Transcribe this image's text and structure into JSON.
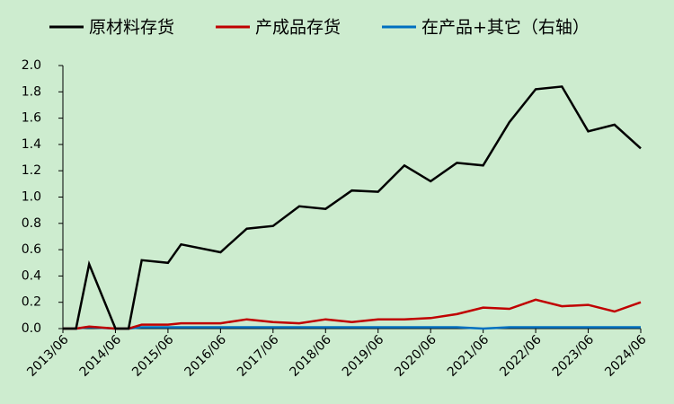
{
  "chart_data": {
    "type": "line",
    "x": [
      "2013/06",
      "2013/09",
      "2013/12",
      "2014/06",
      "2014/09",
      "2014/12",
      "2015/06",
      "2015/09",
      "2016/06",
      "2016/12",
      "2017/06",
      "2017/12",
      "2018/06",
      "2018/12",
      "2019/06",
      "2019/12",
      "2020/06",
      "2020/12",
      "2021/06",
      "2021/12",
      "2022/06",
      "2022/12",
      "2023/06",
      "2023/12",
      "2024/06"
    ],
    "series": [
      {
        "name": "原材料存货",
        "color": "#000000",
        "values": [
          0,
          0,
          0.49,
          0,
          0,
          0.52,
          0.5,
          0.64,
          0.58,
          0.76,
          0.78,
          0.93,
          0.91,
          1.05,
          1.04,
          1.24,
          1.12,
          1.26,
          1.24,
          1.57,
          1.82,
          1.84,
          1.5,
          1.55,
          1.37
        ]
      },
      {
        "name": "产成品存货",
        "color": "#c00000",
        "values": [
          0,
          0,
          0.015,
          0,
          0,
          0.03,
          0.03,
          0.04,
          0.04,
          0.07,
          0.05,
          0.04,
          0.07,
          0.05,
          0.07,
          0.07,
          0.08,
          0.11,
          0.16,
          0.15,
          0.22,
          0.17,
          0.18,
          0.13,
          0.2
        ]
      },
      {
        "name": "在产品+其它（右轴）",
        "color": "#0070c0",
        "values": [
          0,
          0,
          0.01,
          0,
          0,
          0.01,
          0.01,
          0.01,
          0.01,
          0.01,
          0.01,
          0.01,
          0.01,
          0.01,
          0.01,
          0.01,
          0.01,
          0.01,
          0,
          0.01,
          0.01,
          0.01,
          0.01,
          0.01,
          0.01
        ]
      }
    ],
    "xlim": [
      "2013/06",
      "2024/06"
    ],
    "xticks": [
      "2013/06",
      "2014/06",
      "2015/06",
      "2016/06",
      "2017/06",
      "2018/06",
      "2019/06",
      "2020/06",
      "2021/06",
      "2022/06",
      "2023/06",
      "2024/06"
    ],
    "ylim": [
      0,
      2
    ],
    "yticks": [
      {
        "value": 0,
        "label": "0.0"
      },
      {
        "value": 0.2,
        "label": "0.2"
      },
      {
        "value": 0.4,
        "label": "0.4"
      },
      {
        "value": 0.6,
        "label": "0.6"
      },
      {
        "value": 0.8,
        "label": "0.8"
      },
      {
        "value": 1,
        "label": "1.0"
      },
      {
        "value": 1.2,
        "label": "1.2"
      },
      {
        "value": 1.4,
        "label": "1.4"
      },
      {
        "value": 1.6,
        "label": "1.6"
      },
      {
        "value": 1.8,
        "label": "1.8"
      },
      {
        "value": 2,
        "label": "2.0"
      }
    ],
    "legend": "top"
  }
}
